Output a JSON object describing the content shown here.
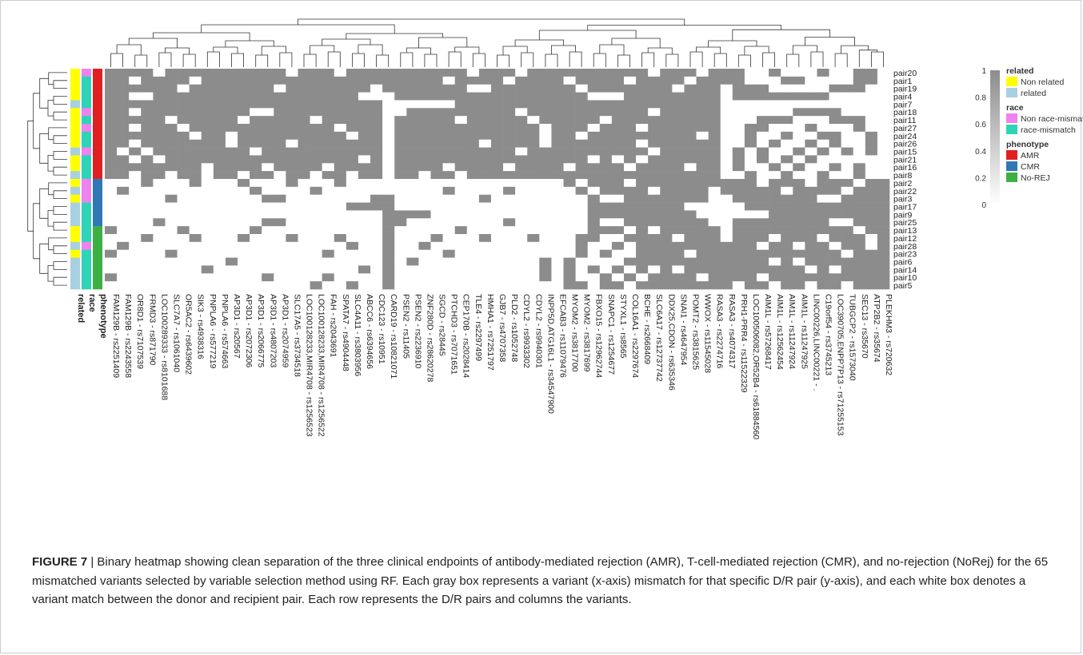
{
  "caption": {
    "label": "FIGURE 7",
    "text": " | Binary heatmap showing clean separation of the three clinical endpoints of antibody-mediated rejection (AMR), T-cell-mediated rejection (CMR), and no-rejection (NoRej) for the 65 mismatched variants selected by variable selection method using RF. Each gray box represents a variant (x-axis) mismatch for that specific D/R pair (y-axis), and each white box denotes a variant match between the donor and recipient pair. Each row represents the D/R pairs and columns the variants."
  },
  "chart_data": {
    "type": "heatmap",
    "colors": {
      "mismatch": "#8c8c8c",
      "match": "#ffffff"
    },
    "scale": {
      "min": 0,
      "max": 1,
      "ticks": [
        1,
        0.8,
        0.6,
        0.4,
        0.2,
        0
      ]
    },
    "annotation_columns": [
      "related",
      "race",
      "phenotype"
    ],
    "legend": [
      {
        "title": "related",
        "entries": [
          {
            "label": "Non related",
            "color": "#ffff00"
          },
          {
            "label": "related",
            "color": "#a8d0e0"
          }
        ]
      },
      {
        "title": "race",
        "entries": [
          {
            "label": "Non race-mismatch",
            "color": "#ee82ee"
          },
          {
            "label": "race-mismatch",
            "color": "#2dd4b5"
          }
        ]
      },
      {
        "title": "phenotype",
        "entries": [
          {
            "label": "AMR",
            "color": "#e02020"
          },
          {
            "label": "CMR",
            "color": "#2f78b5"
          },
          {
            "label": "No-REJ",
            "color": "#3cb043"
          }
        ]
      }
    ],
    "rows": [
      {
        "pair": "pair20",
        "related": "Non related",
        "race": "Non race-mismatch",
        "phenotype": "AMR"
      },
      {
        "pair": "pair1",
        "related": "Non related",
        "race": "race-mismatch",
        "phenotype": "AMR"
      },
      {
        "pair": "pair19",
        "related": "Non related",
        "race": "race-mismatch",
        "phenotype": "AMR"
      },
      {
        "pair": "pair4",
        "related": "Non related",
        "race": "race-mismatch",
        "phenotype": "AMR"
      },
      {
        "pair": "pair7",
        "related": "related",
        "race": "race-mismatch",
        "phenotype": "AMR"
      },
      {
        "pair": "pair18",
        "related": "Non related",
        "race": "Non race-mismatch",
        "phenotype": "AMR"
      },
      {
        "pair": "pair11",
        "related": "Non related",
        "race": "race-mismatch",
        "phenotype": "AMR"
      },
      {
        "pair": "pair27",
        "related": "Non related",
        "race": "Non race-mismatch",
        "phenotype": "AMR"
      },
      {
        "pair": "pair24",
        "related": "Non related",
        "race": "race-mismatch",
        "phenotype": "AMR"
      },
      {
        "pair": "pair26",
        "related": "Non related",
        "race": "race-mismatch",
        "phenotype": "AMR"
      },
      {
        "pair": "pair15",
        "related": "related",
        "race": "Non race-mismatch",
        "phenotype": "AMR"
      },
      {
        "pair": "pair21",
        "related": "Non related",
        "race": "race-mismatch",
        "phenotype": "AMR"
      },
      {
        "pair": "pair16",
        "related": "Non related",
        "race": "race-mismatch",
        "phenotype": "AMR"
      },
      {
        "pair": "pair8",
        "related": "related",
        "race": "race-mismatch",
        "phenotype": "AMR"
      },
      {
        "pair": "pair2",
        "related": "Non related",
        "race": "Non race-mismatch",
        "phenotype": "CMR"
      },
      {
        "pair": "pair22",
        "related": "related",
        "race": "Non race-mismatch",
        "phenotype": "CMR"
      },
      {
        "pair": "pair3",
        "related": "Non related",
        "race": "Non race-mismatch",
        "phenotype": "CMR"
      },
      {
        "pair": "pair17",
        "related": "related",
        "race": "race-mismatch",
        "phenotype": "CMR"
      },
      {
        "pair": "pair9",
        "related": "related",
        "race": "race-mismatch",
        "phenotype": "CMR"
      },
      {
        "pair": "pair25",
        "related": "related",
        "race": "race-mismatch",
        "phenotype": "CMR"
      },
      {
        "pair": "pair13",
        "related": "Non related",
        "race": "race-mismatch",
        "phenotype": "No-REJ"
      },
      {
        "pair": "pair12",
        "related": "Non related",
        "race": "race-mismatch",
        "phenotype": "No-REJ"
      },
      {
        "pair": "pair28",
        "related": "related",
        "race": "Non race-mismatch",
        "phenotype": "No-REJ"
      },
      {
        "pair": "pair23",
        "related": "Non related",
        "race": "race-mismatch",
        "phenotype": "No-REJ"
      },
      {
        "pair": "pair6",
        "related": "related",
        "race": "race-mismatch",
        "phenotype": "No-REJ"
      },
      {
        "pair": "pair14",
        "related": "related",
        "race": "race-mismatch",
        "phenotype": "No-REJ"
      },
      {
        "pair": "pair10",
        "related": "related",
        "race": "race-mismatch",
        "phenotype": "No-REJ"
      },
      {
        "pair": "pair5",
        "related": "related",
        "race": "race-mismatch",
        "phenotype": "No-REJ"
      }
    ],
    "columns": [
      "FAM129B - rs2251409",
      "FAM129B - rs2243558",
      "OR8D1 - rs7107539",
      "FRMD3 - rs871790",
      "LOC100289333 - rs8101688",
      "SLC7A7 - rs1061040",
      "OR5AC2 - rs6439602",
      "SIK3 - rs4938316",
      "PNPLA6 - rs577219",
      "PNPLA6 - rs574663",
      "AP3D1 - rs20567",
      "AP3D1 - rs2072306",
      "AP3D1 - rs2066775",
      "AP3D1 - rs4807203",
      "AP3D1 - rs2074959",
      "SLC17A5 - rs3734518",
      "LOC100128233,MIR4708 - rs1256523",
      "LOC100128233,MIR4708 - rs1256522",
      "FAH - rs2043691",
      "SPATA7 - rs4904448",
      "SLC4A11 - rs3803956",
      "ABCC6 - rs6394656",
      "CDC123 - rs10951",
      "CARD19 - rs10821071",
      "PSEN2 - rs11405",
      "PSEN2 - rs2236910",
      "ZNF280D - rs28620278",
      "SGCD - rs28445",
      "PTCHD3 - rs7071651",
      "CEP170B - rs2028414",
      "TLE4 - rs2297499",
      "HMHA1 - rs7251797",
      "GJB7 - rs4707358",
      "PLD2 - rs1052748",
      "CDYL2 - rs9933302",
      "CDYL2 - rs9940301",
      "INPP5D,ATG16L1 - rs34547900",
      "EFCAB3 - rs11079476",
      "MYOM2 - rs3817700",
      "MYOM2 - rs3817699",
      "FBXO15 - rs12962744",
      "SNAPC1 - rs1254677",
      "STYXL1 - rs8565",
      "COL16A1 - rs2297674",
      "BCHE - rs2668409",
      "SLC6A17 - rs12737742",
      "DDX25,CDON - rs635346",
      "SNAI1 - rs4647954",
      "POMT2 - rs3815625",
      "WWOX - rs11545028",
      "RASA3 - rs2274716",
      "RASA3 - rs4074317",
      "PRH1-PRR4 - rs11522329",
      "LOC100506082,OR52B4 - rs61884560",
      "AIM1L - rs57268417",
      "AIM1L - rs12562454",
      "AIM1L - rs11247924",
      "AIM1L - rs11247925",
      "LINC00226,LINC00221 - .",
      "C19orf54 - rs3745213",
      "LOC390705,ENPP7P13 - rs71255153",
      "TUBGCP2 - rs1573040",
      "SEC13 - rs35670",
      "ATP2B2 - rs35674",
      "PLEKHM3 - rs720632"
    ],
    "matrix": [
      "0000000000000000000000000000000000000000000000000000000000000000001",
      "0000000000000000000000000000000000000000000000000000000000000000000",
      "0000000000000000000000000000000000000000000000000000000000000000001",
      "0000000000000000000000000000000000000000000000000000000000000000000",
      "0000000000000000000000000000000000000000000000000000000000000000000",
      "0000000000000000000000000000000000000000000000000000000000000000000",
      "0000000000000000000000000000000000000000000000000000000000000000000",
      "0000000000000000000000000000000000000000000000000000000000000000001",
      "0000000000000000000000000000000000000000000000000000000000000000001",
      "0000000000000000000000000000000000000000000000000000000000000000001",
      "0000000000000000000000000000000000000000000000000000000000000000000",
      "0000000000000000000000000000000000000000000000000000000000000000000",
      "0000000000000000000000000000000000000000000000000000000000000000000",
      "0000000000000000000000000000000000000000000000000000000000000000000",
      "0000000000000000000000000000000000000000000000000000000000000000000",
      "0000000000000000000000000000000000000000000000000000000000000000000",
      "0000000000000000000000000000000000000000000000000000000000000000000",
      "0000000000000000000000000000000000000000000000000000000000000000000",
      "0000000000000000000000000000000000000000000000000000000000000000000",
      "0000000000000000000000000000000000000000000000000000000000000000000",
      "0000000000000000000000000000000000000000000000000000000000000000000",
      "0000000000000000000000000000000000000000000000000000000000000000000",
      "0000000000000000000000000000000000000000000000000000000000000000000",
      "0000000000000000000000000000000000000000000000000000000000000000000",
      "0000000000000000000000000000000000000000000000000000000000000000000",
      "0000000000000000000000000000000000000000000000000000000000000000000",
      "0000000000000000000000000000000000000000000000000000000000000000000",
      "0000000000000000000000000000000000000000000000000000000000000000000"
    ],
    "cells": [
      "11111111111111111111111111111111111111111111111111111100111111111111",
      "11111111111111111111111111111111111111111111111110111111111111110000"
    ]
  }
}
